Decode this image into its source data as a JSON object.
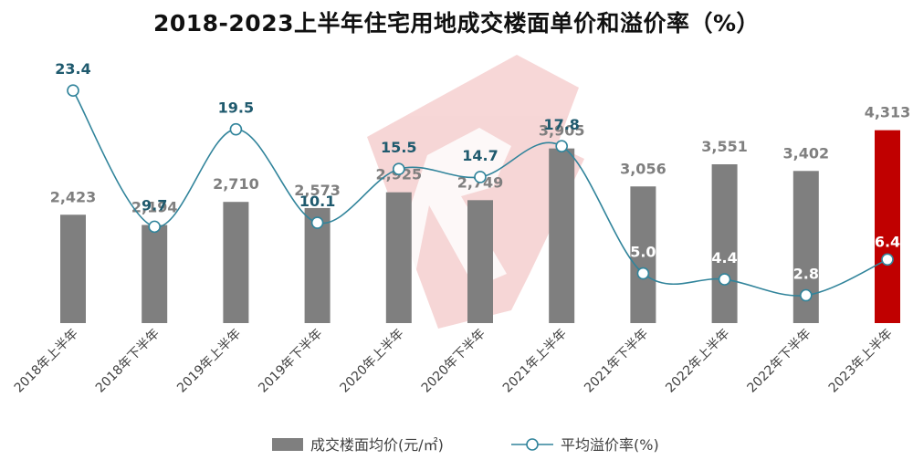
{
  "chart_data": {
    "type": "bar",
    "title": "2018-2023上半年住宅用地成交楼面单价和溢价率（%）",
    "categories": [
      "2018年上半年",
      "2018年下半年",
      "2019年上半年",
      "2019年下半年",
      "2020年上半年",
      "2020年下半年",
      "2021年上半年",
      "2021年下半年",
      "2022年上半年",
      "2022年下半年",
      "2023年上半年"
    ],
    "series": [
      {
        "name": "成交楼面均价(元/㎡)",
        "kind": "bar",
        "axis": "left",
        "values": [
          2423,
          2194,
          2710,
          2573,
          2925,
          2749,
          3905,
          3056,
          3551,
          3402,
          4313
        ],
        "labels": [
          "2,423",
          "2,194",
          "2,710",
          "2,573",
          "2,925",
          "2,749",
          "3,905",
          "3,056",
          "3,551",
          "3,402",
          "4,313"
        ],
        "color": "#7f7f7f",
        "highlight_index": 10,
        "highlight_color": "#c00000"
      },
      {
        "name": "平均溢价率(%)",
        "kind": "line",
        "axis": "right",
        "values": [
          23.4,
          9.7,
          19.5,
          10.1,
          15.5,
          14.7,
          17.8,
          5.0,
          4.4,
          2.8,
          6.4
        ],
        "labels": [
          "23.4",
          "9.7",
          "19.5",
          "10.1",
          "15.5",
          "14.7",
          "17.8",
          "5.0",
          "4.4",
          "2.8",
          "6.4"
        ],
        "color": "#31849b",
        "label_color": "#1f5a6e",
        "smooth": true
      }
    ],
    "left_axis": {
      "ylim": [
        0,
        6000
      ],
      "visible": false
    },
    "right_axis": {
      "ylim": [
        0,
        27
      ],
      "visible": false
    },
    "grid": false,
    "legend": "bottom",
    "watermark": "R"
  }
}
